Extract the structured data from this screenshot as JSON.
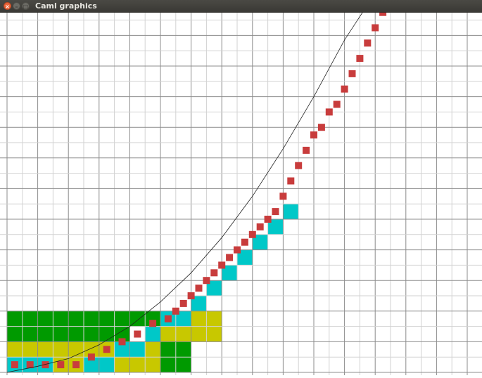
{
  "window": {
    "title": "Caml graphics",
    "close_glyph": "×",
    "min_glyph": "–",
    "max_glyph": "□"
  },
  "colors": {
    "grid_major": "#8c8c8c",
    "grid_minor": "#d2d2d2",
    "green": "#009a00",
    "yellow": "#c8c800",
    "cyan": "#00c8c8",
    "red": "#c83c3c",
    "curve": "#202020"
  },
  "graphics": {
    "green_cells": [
      [
        0,
        3
      ],
      [
        1,
        3
      ],
      [
        2,
        3
      ],
      [
        3,
        3
      ],
      [
        4,
        3
      ],
      [
        5,
        3
      ],
      [
        6,
        3
      ],
      [
        7,
        3
      ],
      [
        8,
        3
      ],
      [
        9,
        3
      ],
      [
        0,
        2
      ],
      [
        1,
        2
      ],
      [
        2,
        2
      ],
      [
        3,
        2
      ],
      [
        4,
        2
      ],
      [
        5,
        2
      ],
      [
        6,
        2
      ],
      [
        7,
        2
      ],
      [
        10,
        1
      ],
      [
        11,
        1
      ],
      [
        10,
        0
      ],
      [
        11,
        0
      ]
    ],
    "yellow_cells": [
      [
        12,
        3
      ],
      [
        13,
        3
      ],
      [
        10,
        2
      ],
      [
        11,
        2
      ],
      [
        12,
        2
      ],
      [
        13,
        2
      ],
      [
        0,
        1
      ],
      [
        1,
        1
      ],
      [
        2,
        1
      ],
      [
        3,
        1
      ],
      [
        4,
        1
      ],
      [
        5,
        1
      ],
      [
        6,
        1
      ],
      [
        7,
        1
      ],
      [
        8,
        1
      ],
      [
        9,
        1
      ],
      [
        3,
        0
      ],
      [
        4,
        0
      ],
      [
        5,
        0
      ],
      [
        6,
        0
      ],
      [
        7,
        0
      ],
      [
        8,
        0
      ],
      [
        9,
        0
      ]
    ],
    "cyan_cells": [
      [
        0,
        0
      ],
      [
        1,
        0
      ],
      [
        2,
        0
      ],
      [
        5,
        0
      ],
      [
        6,
        0
      ],
      [
        7,
        1
      ],
      [
        8,
        1
      ],
      [
        9,
        2
      ],
      [
        10,
        3
      ],
      [
        11,
        3
      ],
      [
        12,
        4
      ],
      [
        13,
        5
      ],
      [
        14,
        6
      ],
      [
        15,
        7
      ],
      [
        16,
        8
      ],
      [
        17,
        9
      ],
      [
        18,
        10
      ]
    ],
    "red_squares": [
      [
        0.5,
        0.5
      ],
      [
        1.5,
        0.5
      ],
      [
        2.5,
        0.5
      ],
      [
        3.5,
        0.5
      ],
      [
        4.5,
        0.5
      ],
      [
        5.5,
        1.0
      ],
      [
        6.5,
        1.5
      ],
      [
        7.5,
        2.0
      ],
      [
        8.5,
        2.5
      ],
      [
        9.5,
        3.2
      ],
      [
        10.5,
        3.5
      ],
      [
        11.0,
        4.0
      ],
      [
        11.5,
        4.5
      ],
      [
        12.0,
        5.0
      ],
      [
        12.5,
        5.5
      ],
      [
        13.0,
        6.0
      ],
      [
        13.5,
        6.5
      ],
      [
        14.0,
        7.0
      ],
      [
        14.5,
        7.5
      ],
      [
        15.0,
        8.0
      ],
      [
        15.5,
        8.5
      ],
      [
        16.0,
        9.0
      ],
      [
        16.5,
        9.5
      ],
      [
        17.0,
        10.0
      ],
      [
        17.5,
        10.5
      ],
      [
        18.0,
        11.5
      ],
      [
        18.5,
        12.5
      ],
      [
        19.0,
        13.5
      ],
      [
        19.5,
        14.5
      ],
      [
        20.0,
        15.5
      ],
      [
        20.5,
        16.0
      ],
      [
        21.0,
        17.0
      ],
      [
        21.5,
        17.5
      ],
      [
        22.0,
        18.5
      ],
      [
        22.5,
        19.5
      ],
      [
        23.0,
        20.5
      ],
      [
        23.5,
        21.5
      ],
      [
        24.0,
        22.5
      ],
      [
        24.5,
        23.5
      ]
    ],
    "curve_points": [
      [
        0.0,
        0.0
      ],
      [
        2.0,
        0.4
      ],
      [
        4.0,
        0.9
      ],
      [
        6.0,
        1.8
      ],
      [
        8.0,
        3.0
      ],
      [
        10.0,
        4.6
      ],
      [
        12.0,
        6.5
      ],
      [
        14.0,
        8.8
      ],
      [
        16.0,
        11.5
      ],
      [
        18.0,
        14.6
      ],
      [
        20.0,
        18.0
      ],
      [
        22.0,
        21.7
      ],
      [
        23.5,
        24.0
      ]
    ]
  }
}
